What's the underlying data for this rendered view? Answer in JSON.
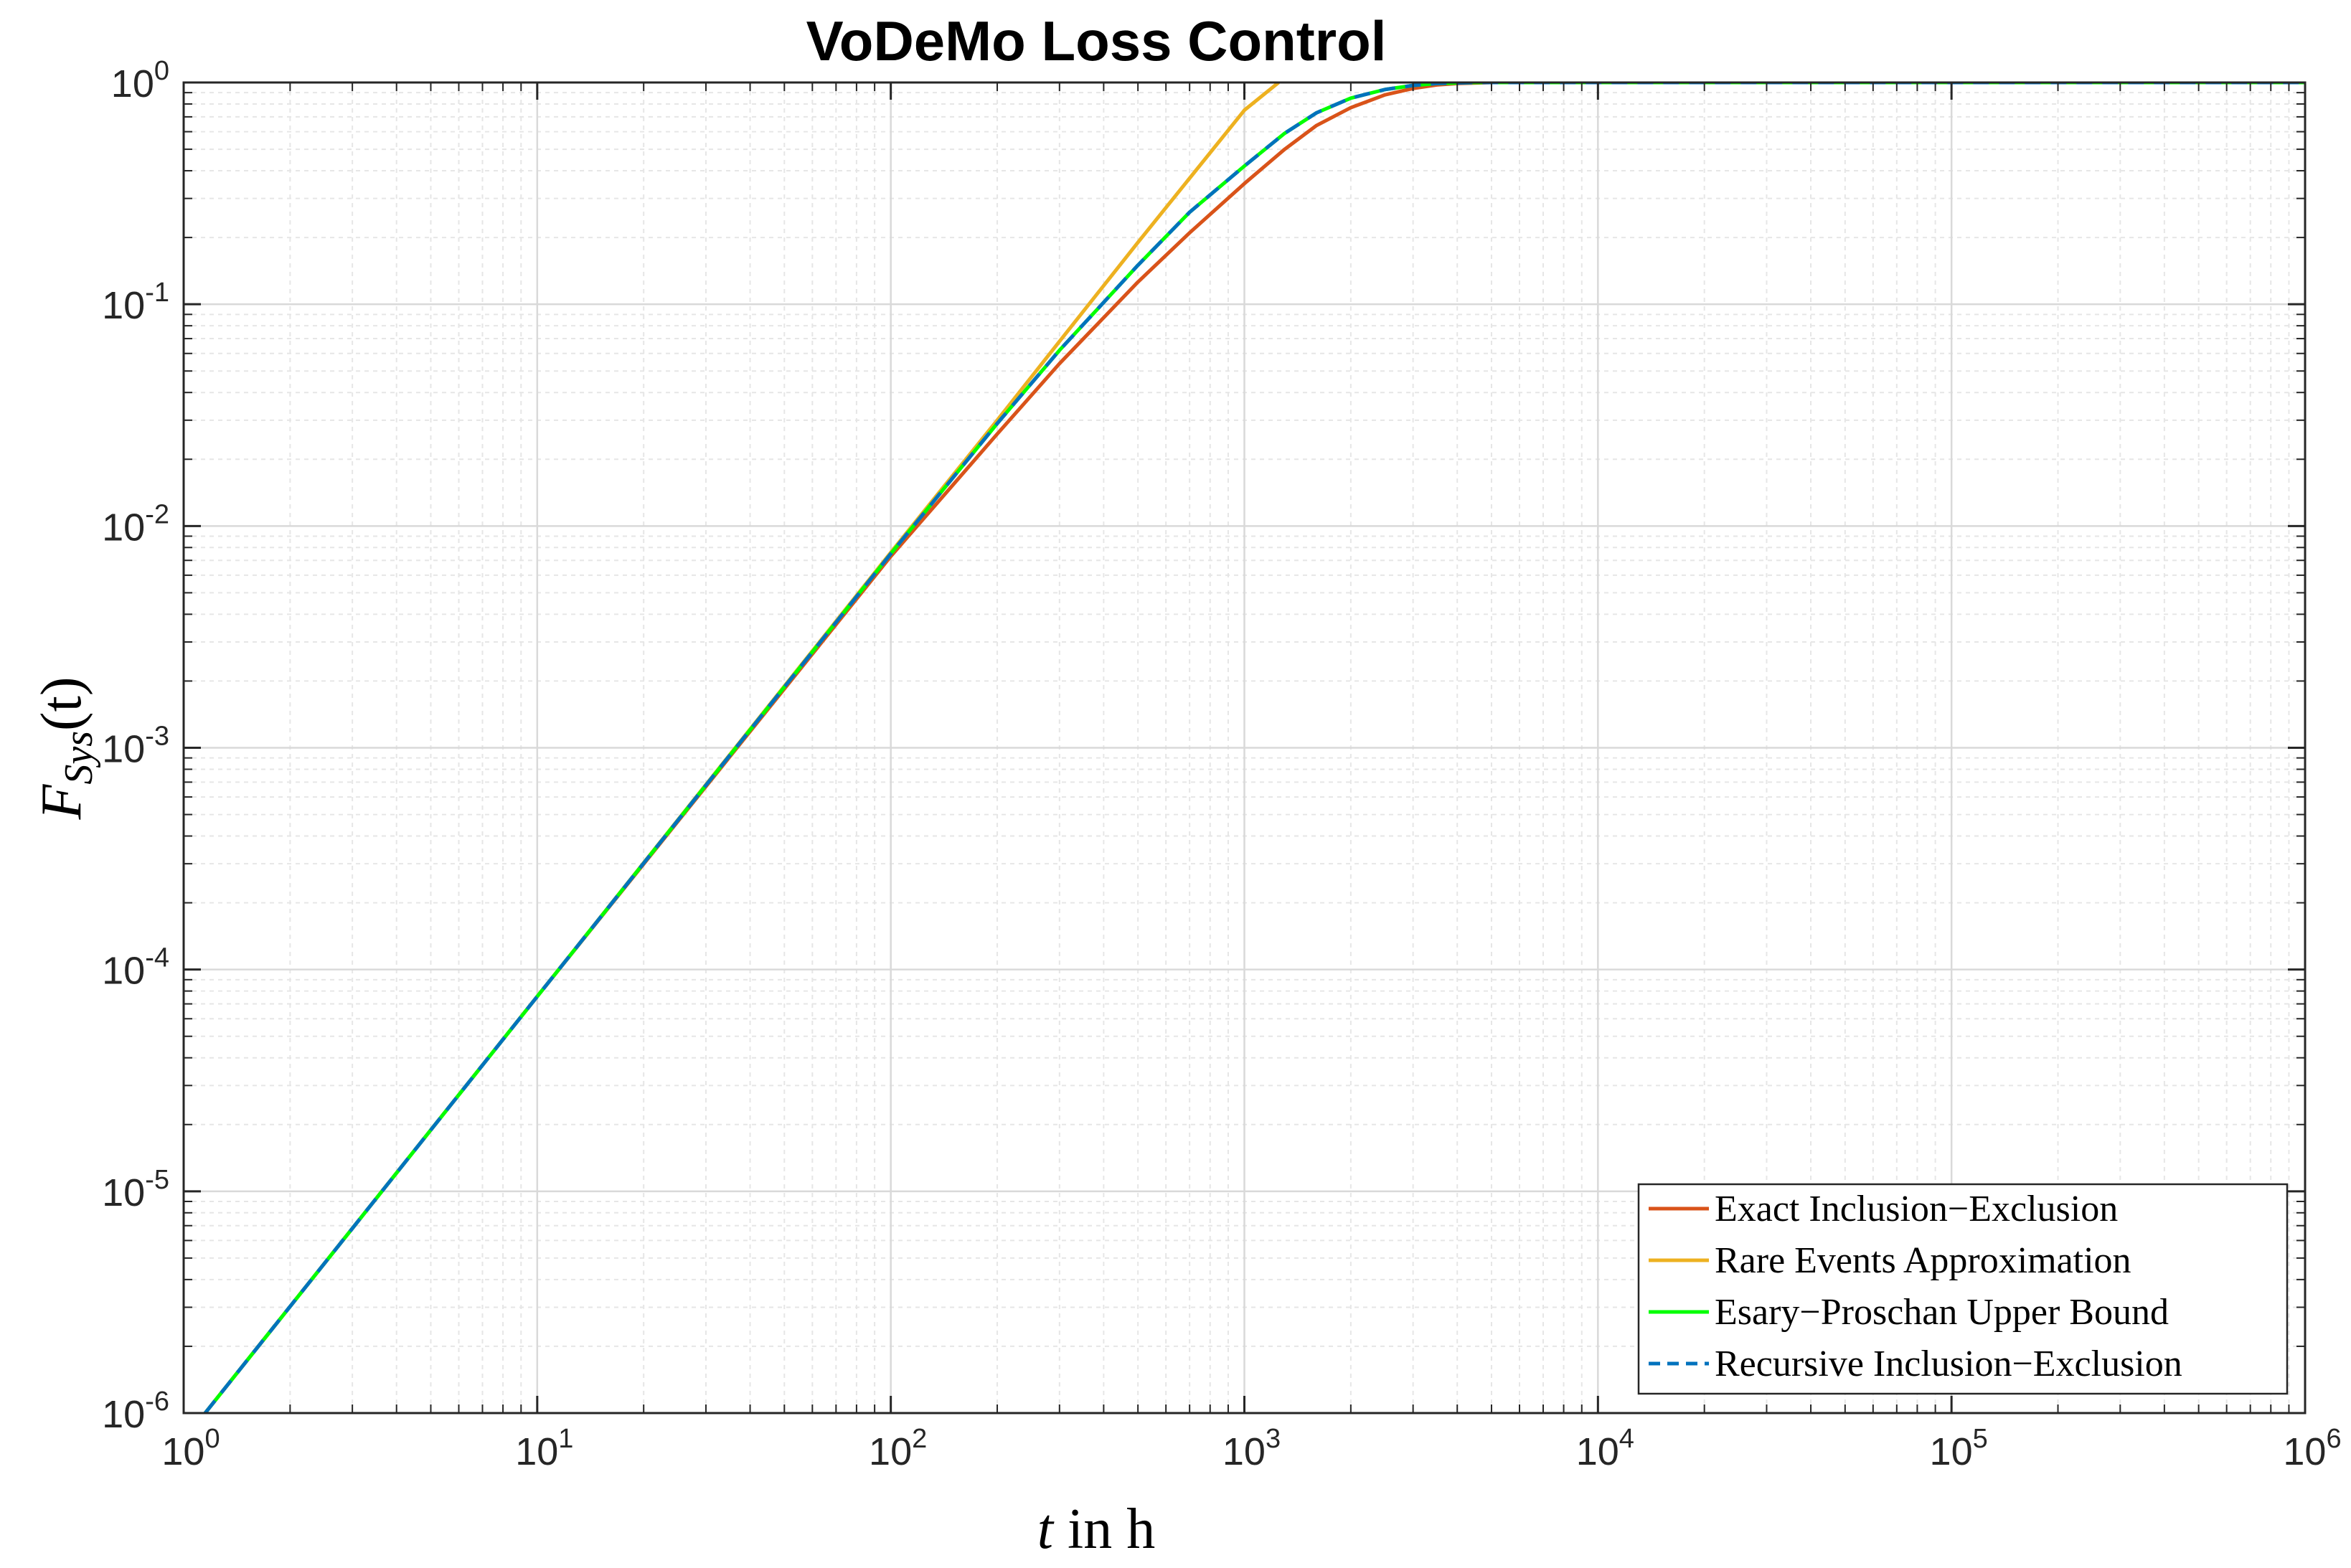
{
  "chart_data": {
    "type": "line",
    "title": "VoDeMo Loss Control",
    "xlabel": {
      "var": "t",
      "rest": " in h"
    },
    "ylabel": {
      "var": "F",
      "sub": "Sys",
      "rest": "(t)"
    },
    "xscale": "log",
    "yscale": "log",
    "xlim": [
      1,
      1000000
    ],
    "ylim": [
      1e-06,
      1
    ],
    "grid": true,
    "minor_grid": true,
    "legend_position": "bottom-right",
    "x_ticks": [
      {
        "base": "10",
        "exp": "0"
      },
      {
        "base": "10",
        "exp": "1"
      },
      {
        "base": "10",
        "exp": "2"
      },
      {
        "base": "10",
        "exp": "3"
      },
      {
        "base": "10",
        "exp": "4"
      },
      {
        "base": "10",
        "exp": "5"
      },
      {
        "base": "10",
        "exp": "6"
      }
    ],
    "y_ticks": [
      {
        "base": "10",
        "exp": "-6"
      },
      {
        "base": "10",
        "exp": "-5"
      },
      {
        "base": "10",
        "exp": "-4"
      },
      {
        "base": "10",
        "exp": "-3"
      },
      {
        "base": "10",
        "exp": "-2"
      },
      {
        "base": "10",
        "exp": "-1"
      },
      {
        "base": "10",
        "exp": "0"
      }
    ],
    "series": [
      {
        "name": "Exact Inclusion−Exclusion",
        "color": "#D95319",
        "style": "solid",
        "points": [
          [
            1.15,
            1e-06
          ],
          [
            10,
            7.56e-05
          ],
          [
            100,
            0.0073
          ],
          [
            200,
            0.026
          ],
          [
            300,
            0.054
          ],
          [
            500,
            0.126
          ],
          [
            700,
            0.21
          ],
          [
            1000,
            0.35
          ],
          [
            1300,
            0.5
          ],
          [
            1600,
            0.64
          ],
          [
            2000,
            0.77
          ],
          [
            2500,
            0.88
          ],
          [
            3000,
            0.94
          ],
          [
            3500,
            0.975
          ],
          [
            4000,
            0.99
          ],
          [
            5000,
            1.0
          ],
          [
            1000000,
            1.0
          ]
        ]
      },
      {
        "name": "Rare Events Approximation",
        "color": "#EDB120",
        "style": "solid",
        "points": [
          [
            1.15,
            1e-06
          ],
          [
            10,
            7.56e-05
          ],
          [
            100,
            0.0076
          ],
          [
            200,
            0.03
          ],
          [
            300,
            0.068
          ],
          [
            500,
            0.19
          ],
          [
            700,
            0.37
          ],
          [
            1000,
            0.75
          ],
          [
            1250,
            1.0
          ]
        ]
      },
      {
        "name": "Esary−Proschan Upper Bound",
        "color": "#00FF00",
        "style": "solid",
        "points": [
          [
            1.15,
            1e-06
          ],
          [
            10,
            7.56e-05
          ],
          [
            100,
            0.0075
          ],
          [
            200,
            0.029
          ],
          [
            300,
            0.062
          ],
          [
            500,
            0.15
          ],
          [
            700,
            0.26
          ],
          [
            1000,
            0.42
          ],
          [
            1300,
            0.59
          ],
          [
            1600,
            0.73
          ],
          [
            2000,
            0.85
          ],
          [
            2500,
            0.93
          ],
          [
            3000,
            0.97
          ],
          [
            3500,
            0.99
          ],
          [
            4500,
            1.0
          ],
          [
            1000000,
            1.0
          ]
        ]
      },
      {
        "name": "Recursive Inclusion−Exclusion",
        "color": "#0072BD",
        "style": "dashed",
        "points": [
          [
            1.15,
            1e-06
          ],
          [
            10,
            7.56e-05
          ],
          [
            100,
            0.0075
          ],
          [
            200,
            0.029
          ],
          [
            300,
            0.062
          ],
          [
            500,
            0.15
          ],
          [
            700,
            0.26
          ],
          [
            1000,
            0.42
          ],
          [
            1300,
            0.59
          ],
          [
            1600,
            0.73
          ],
          [
            2000,
            0.85
          ],
          [
            2500,
            0.93
          ],
          [
            3000,
            0.97
          ],
          [
            3500,
            0.99
          ],
          [
            4500,
            1.0
          ],
          [
            1000000,
            1.0
          ]
        ]
      }
    ]
  }
}
